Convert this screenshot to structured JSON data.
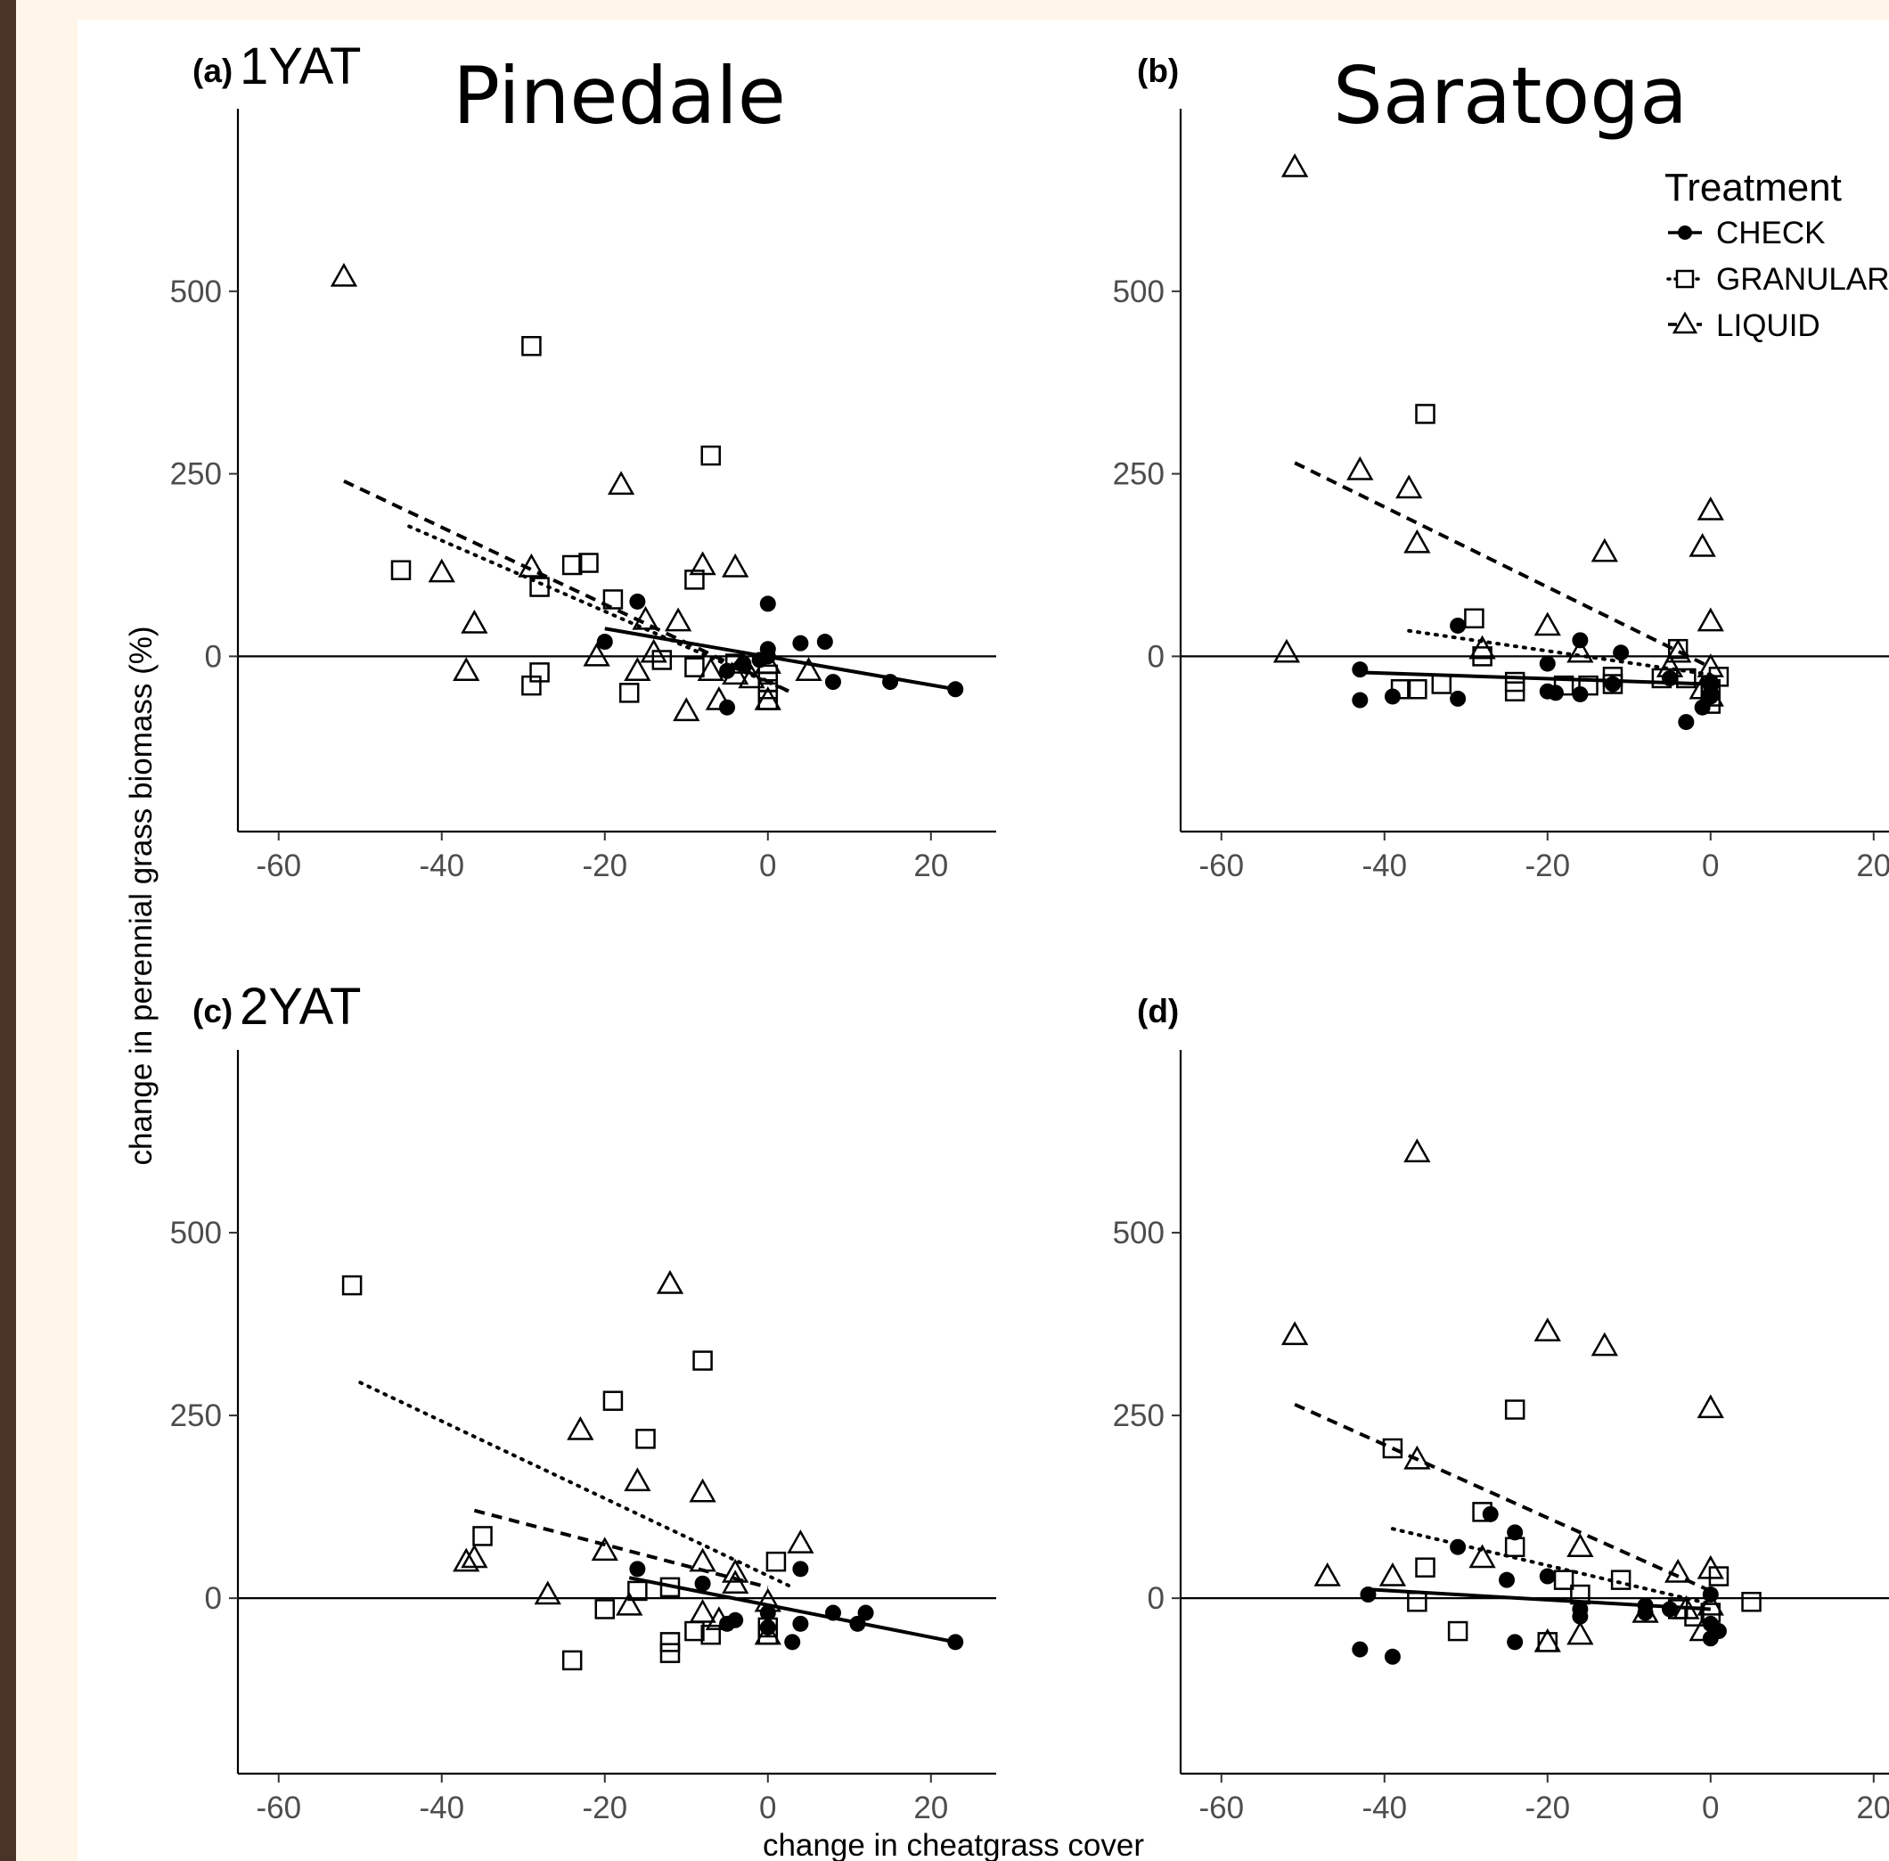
{
  "chart_data": [
    {
      "type": "scatter",
      "panel_label": "(a)",
      "period_label": "1YAT",
      "site_title": "Pinedale",
      "xlim": [
        -65,
        28
      ],
      "ylim": [
        -240,
        750
      ],
      "xticks": [
        -60,
        -40,
        -20,
        0,
        20
      ],
      "yticks": [
        0,
        250,
        500
      ],
      "series": [
        {
          "name": "CHECK",
          "marker": "filled-circle",
          "line": "solid",
          "points": [
            [
              -16,
              75
            ],
            [
              0,
              72
            ],
            [
              -20,
              20
            ],
            [
              4,
              18
            ],
            [
              7,
              20
            ],
            [
              -5,
              -20
            ],
            [
              -3,
              -10
            ],
            [
              -1,
              -5
            ],
            [
              0,
              0
            ],
            [
              0,
              10
            ],
            [
              8,
              -35
            ],
            [
              15,
              -35
            ],
            [
              23,
              -45
            ],
            [
              -5,
              -70
            ]
          ],
          "fit": [
            [
              -20,
              38
            ],
            [
              23,
              -45
            ]
          ]
        },
        {
          "name": "GRANULAR",
          "marker": "open-square",
          "line": "dotted",
          "points": [
            [
              -29,
              425
            ],
            [
              -7,
              275
            ],
            [
              -45,
              118
            ],
            [
              -24,
              125
            ],
            [
              -22,
              128
            ],
            [
              -28,
              95
            ],
            [
              -19,
              78
            ],
            [
              -9,
              105
            ],
            [
              -13,
              -5
            ],
            [
              -9,
              -15
            ],
            [
              -17,
              -50
            ],
            [
              -28,
              -22
            ],
            [
              -29,
              -40
            ],
            [
              0,
              -25
            ],
            [
              0,
              -35
            ],
            [
              0,
              -45
            ],
            [
              0,
              -60
            ],
            [
              -4,
              -10
            ]
          ],
          "fit": [
            [
              -44,
              178
            ],
            [
              3,
              -50
            ]
          ]
        },
        {
          "name": "LIQUID",
          "marker": "open-triangle",
          "line": "dashed",
          "points": [
            [
              -52,
              520
            ],
            [
              -18,
              235
            ],
            [
              -40,
              115
            ],
            [
              -29,
              122
            ],
            [
              -8,
              125
            ],
            [
              -4,
              122
            ],
            [
              -36,
              45
            ],
            [
              -15,
              50
            ],
            [
              -11,
              48
            ],
            [
              -21,
              0
            ],
            [
              -37,
              -20
            ],
            [
              -16,
              -20
            ],
            [
              -7,
              -20
            ],
            [
              -6,
              -60
            ],
            [
              -10,
              -75
            ],
            [
              -4,
              -25
            ],
            [
              5,
              -20
            ],
            [
              0,
              -10
            ],
            [
              0,
              -60
            ],
            [
              -14,
              5
            ],
            [
              -2,
              -30
            ]
          ],
          "fit": [
            [
              -52,
              240
            ],
            [
              3,
              -50
            ]
          ]
        }
      ]
    },
    {
      "type": "scatter",
      "panel_label": "(b)",
      "period_label": "",
      "site_title": "Saratoga",
      "xlim": [
        -65,
        28
      ],
      "ylim": [
        -240,
        750
      ],
      "xticks": [
        -60,
        -40,
        -20,
        0,
        20
      ],
      "yticks": [
        0,
        250,
        500
      ],
      "series": [
        {
          "name": "CHECK",
          "marker": "filled-circle",
          "line": "solid",
          "points": [
            [
              -31,
              42
            ],
            [
              -43,
              -18
            ],
            [
              -43,
              -60
            ],
            [
              -39,
              -55
            ],
            [
              -31,
              -58
            ],
            [
              -20,
              -10
            ],
            [
              -20,
              -48
            ],
            [
              -19,
              -50
            ],
            [
              -16,
              -52
            ],
            [
              -16,
              22
            ],
            [
              -12,
              -38
            ],
            [
              -11,
              5
            ],
            [
              -5,
              -30
            ],
            [
              -3,
              -90
            ],
            [
              -1,
              -70
            ],
            [
              0,
              -55
            ],
            [
              0,
              -40
            ],
            [
              0,
              -50
            ],
            [
              0,
              -35
            ]
          ],
          "fit": [
            [
              -43,
              -22
            ],
            [
              0,
              -38
            ]
          ]
        },
        {
          "name": "GRANULAR",
          "marker": "open-square",
          "line": "dotted",
          "points": [
            [
              -35,
              332
            ],
            [
              -29,
              52
            ],
            [
              -28,
              0
            ],
            [
              -36,
              -45
            ],
            [
              -38,
              -45
            ],
            [
              -33,
              -38
            ],
            [
              -24,
              -48
            ],
            [
              -24,
              -35
            ],
            [
              -18,
              -40
            ],
            [
              -15,
              -40
            ],
            [
              -12,
              -28
            ],
            [
              -12,
              -38
            ],
            [
              -6,
              -30
            ],
            [
              -4,
              10
            ],
            [
              -3,
              -30
            ],
            [
              0,
              -65
            ],
            [
              0,
              -45
            ],
            [
              1,
              -28
            ]
          ],
          "fit": [
            [
              -37,
              35
            ],
            [
              0,
              -25
            ]
          ]
        },
        {
          "name": "LIQUID",
          "marker": "open-triangle",
          "line": "dashed",
          "points": [
            [
              -51,
              670
            ],
            [
              -43,
              255
            ],
            [
              -37,
              230
            ],
            [
              -36,
              155
            ],
            [
              -52,
              5
            ],
            [
              -13,
              143
            ],
            [
              0,
              200
            ],
            [
              -1,
              150
            ],
            [
              0,
              48
            ],
            [
              -20,
              42
            ],
            [
              -28,
              10
            ],
            [
              -16,
              5
            ],
            [
              -4,
              5
            ],
            [
              -5,
              -15
            ],
            [
              0,
              -15
            ],
            [
              -1,
              -45
            ],
            [
              0,
              -55
            ]
          ],
          "fit": [
            [
              -51,
              265
            ],
            [
              0,
              -15
            ]
          ]
        }
      ]
    },
    {
      "type": "scatter",
      "panel_label": "(c)",
      "period_label": "2YAT",
      "site_title": "",
      "xlim": [
        -65,
        28
      ],
      "ylim": [
        -240,
        750
      ],
      "xticks": [
        -60,
        -40,
        -20,
        0,
        20
      ],
      "yticks": [
        0,
        250,
        500
      ],
      "series": [
        {
          "name": "CHECK",
          "marker": "filled-circle",
          "line": "solid",
          "points": [
            [
              -16,
              40
            ],
            [
              4,
              40
            ],
            [
              -8,
              20
            ],
            [
              -4,
              -30
            ],
            [
              0,
              -20
            ],
            [
              0,
              -40
            ],
            [
              4,
              -35
            ],
            [
              8,
              -20
            ],
            [
              12,
              -20
            ],
            [
              11,
              -35
            ],
            [
              -5,
              -35
            ],
            [
              3,
              -60
            ],
            [
              23,
              -60
            ]
          ],
          "fit": [
            [
              -17,
              28
            ],
            [
              23,
              -60
            ]
          ]
        },
        {
          "name": "GRANULAR",
          "marker": "open-square",
          "line": "dotted",
          "points": [
            [
              -51,
              428
            ],
            [
              -8,
              325
            ],
            [
              -19,
              270
            ],
            [
              -15,
              218
            ],
            [
              -35,
              85
            ],
            [
              -16,
              10
            ],
            [
              -12,
              15
            ],
            [
              -20,
              -15
            ],
            [
              -24,
              -85
            ],
            [
              -12,
              -60
            ],
            [
              -12,
              -75
            ],
            [
              -7,
              -50
            ],
            [
              -9,
              -45
            ],
            [
              1,
              50
            ],
            [
              0,
              -40
            ],
            [
              0,
              -50
            ]
          ],
          "fit": [
            [
              -50,
              295
            ],
            [
              3,
              15
            ]
          ]
        },
        {
          "name": "LIQUID",
          "marker": "open-triangle",
          "line": "dashed",
          "points": [
            [
              -12,
              430
            ],
            [
              -23,
              230
            ],
            [
              -16,
              160
            ],
            [
              -8,
              145
            ],
            [
              -20,
              65
            ],
            [
              -36,
              55
            ],
            [
              -37,
              50
            ],
            [
              -27,
              5
            ],
            [
              -17,
              -10
            ],
            [
              -8,
              50
            ],
            [
              -4,
              35
            ],
            [
              -4,
              20
            ],
            [
              4,
              75
            ],
            [
              0,
              -5
            ],
            [
              -8,
              -20
            ],
            [
              -6,
              -30
            ],
            [
              0,
              -50
            ]
          ],
          "fit": [
            [
              -36,
              120
            ],
            [
              0,
              15
            ]
          ]
        }
      ]
    },
    {
      "type": "scatter",
      "panel_label": "(d)",
      "period_label": "",
      "site_title": "",
      "xlim": [
        -65,
        28
      ],
      "ylim": [
        -240,
        750
      ],
      "xticks": [
        -60,
        -40,
        -20,
        0,
        20
      ],
      "yticks": [
        0,
        250,
        500
      ],
      "series": [
        {
          "name": "CHECK",
          "marker": "filled-circle",
          "line": "solid",
          "points": [
            [
              -27,
              115
            ],
            [
              -24,
              90
            ],
            [
              -31,
              70
            ],
            [
              -20,
              30
            ],
            [
              -25,
              25
            ],
            [
              -42,
              5
            ],
            [
              -43,
              -70
            ],
            [
              -39,
              -80
            ],
            [
              -24,
              -60
            ],
            [
              -16,
              -15
            ],
            [
              -16,
              -25
            ],
            [
              -8,
              -10
            ],
            [
              -8,
              -20
            ],
            [
              -5,
              -15
            ],
            [
              0,
              5
            ],
            [
              0,
              -35
            ],
            [
              0,
              -55
            ],
            [
              1,
              -45
            ]
          ],
          "fit": [
            [
              -42,
              12
            ],
            [
              0,
              -15
            ]
          ]
        },
        {
          "name": "GRANULAR",
          "marker": "open-square",
          "line": "dotted",
          "points": [
            [
              -24,
              258
            ],
            [
              -39,
              205
            ],
            [
              -28,
              118
            ],
            [
              -24,
              70
            ],
            [
              -35,
              42
            ],
            [
              -18,
              25
            ],
            [
              -11,
              25
            ],
            [
              -36,
              -5
            ],
            [
              -31,
              -45
            ],
            [
              -20,
              -60
            ],
            [
              -16,
              5
            ],
            [
              -4,
              -15
            ],
            [
              -2,
              -25
            ],
            [
              1,
              30
            ],
            [
              5,
              -5
            ],
            [
              0,
              -20
            ]
          ],
          "fit": [
            [
              -39,
              95
            ],
            [
              0,
              -8
            ]
          ]
        },
        {
          "name": "LIQUID",
          "marker": "open-triangle",
          "line": "dashed",
          "points": [
            [
              -36,
              610
            ],
            [
              -51,
              360
            ],
            [
              -20,
              365
            ],
            [
              -13,
              345
            ],
            [
              0,
              260
            ],
            [
              -36,
              190
            ],
            [
              -16,
              70
            ],
            [
              -28,
              55
            ],
            [
              -47,
              30
            ],
            [
              -39,
              30
            ],
            [
              -20,
              -60
            ],
            [
              -16,
              -50
            ],
            [
              -8,
              -20
            ],
            [
              -4,
              35
            ],
            [
              0,
              40
            ],
            [
              0,
              -10
            ],
            [
              -3,
              -15
            ],
            [
              -1,
              -45
            ]
          ],
          "fit": [
            [
              -51,
              265
            ],
            [
              0,
              10
            ]
          ]
        }
      ]
    }
  ],
  "labels": {
    "y_axis_title": "change in perennial grass biomass (%)",
    "x_axis_title": "change in cheatgrass cover",
    "legend_title": "Treatment",
    "legend_items": [
      "CHECK",
      "GRANULAR",
      "LIQUID"
    ]
  }
}
